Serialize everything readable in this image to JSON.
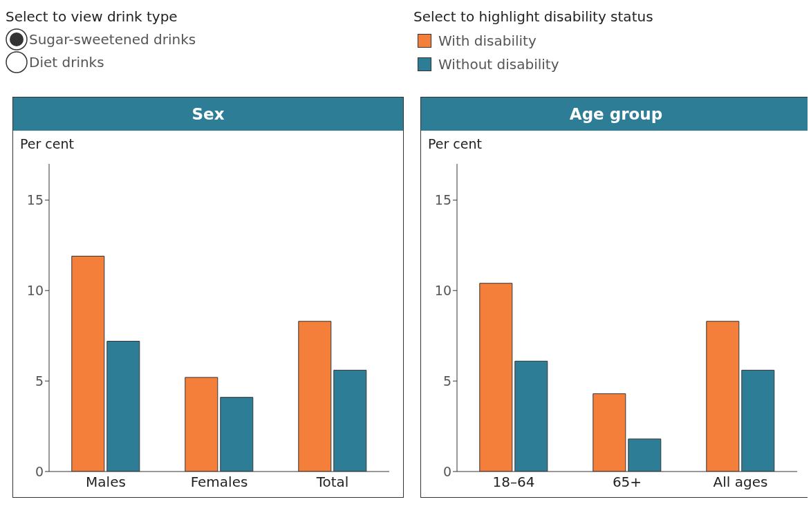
{
  "chart_data": [
    {
      "type": "bar",
      "title": "Sex",
      "ylabel": "Per cent",
      "categories": [
        "Males",
        "Females",
        "Total"
      ],
      "legend": "top",
      "legend_title": "Select to highlight disability status",
      "annotations": [
        "Select to view drink type",
        "Sugar-sweetened drinks",
        "Diet drinks"
      ],
      "series": [
        {
          "name": "With disability",
          "color": "#f47f3a",
          "values": [
            11.9,
            5.2,
            8.3
          ]
        },
        {
          "name": "Without disability",
          "color": "#2e7d97",
          "values": [
            7.2,
            4.1,
            5.6
          ]
        }
      ],
      "ylim": [
        0,
        17
      ],
      "yticks": [
        0,
        5,
        10,
        15
      ]
    },
    {
      "type": "bar",
      "title": "Age group",
      "ylabel": "Per cent",
      "categories": [
        "18–64",
        "65+",
        "All ages"
      ],
      "series": [
        {
          "color": "#f47f3a",
          "values": [
            10.4,
            4.3,
            8.3
          ]
        },
        {
          "color": "#2e7d97",
          "values": [
            6.1,
            1.8,
            5.6
          ]
        }
      ],
      "ylim": [
        0,
        17
      ],
      "yticks": [
        0,
        5,
        10,
        15
      ]
    }
  ]
}
